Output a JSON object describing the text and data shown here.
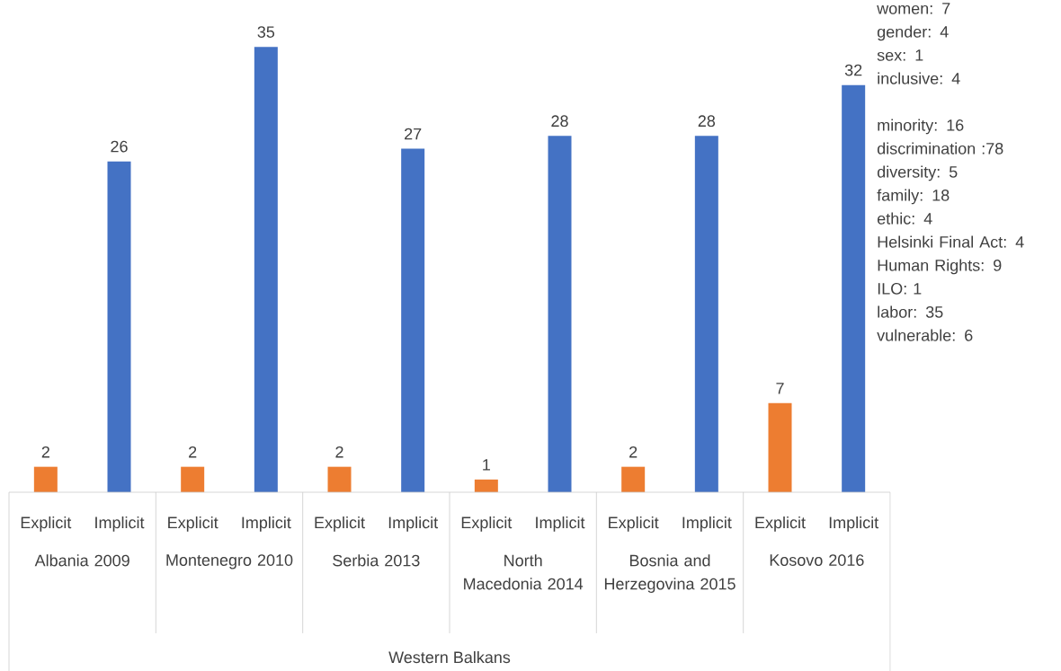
{
  "chart_data": {
    "type": "bar",
    "categories": [
      "Explicit",
      "Implicit",
      "Explicit",
      "Implicit",
      "Explicit",
      "Implicit",
      "Explicit",
      "Implicit",
      "Explicit",
      "Implicit",
      "Explicit",
      "Implicit"
    ],
    "values": [
      2,
      26,
      2,
      35,
      2,
      27,
      1,
      28,
      2,
      28,
      7,
      32
    ],
    "colors": [
      "#ed7d31",
      "#4472c4",
      "#ed7d31",
      "#4472c4",
      "#ed7d31",
      "#4472c4",
      "#ed7d31",
      "#4472c4",
      "#ed7d31",
      "#4472c4",
      "#ed7d31",
      "#4472c4"
    ],
    "data_labels": true,
    "annotations": [
      "Albania 2009",
      "Montenegro 2010",
      "Serbia 2013",
      "North Macedonia 2014",
      "Bosnia and Herzegovina 2015",
      "Kosovo 2016",
      "Western Balkans",
      "women: 7",
      "gender: 4",
      "sex: 1",
      "inclusive: 4",
      "minority: 16",
      "discrimination :78",
      "diversity: 5",
      "family: 18",
      "ethic: 4",
      "Helsinki Final Act: 4",
      "Human Rights: 9",
      "ILO: 1",
      "labor: 35",
      "vulnerable: 6"
    ]
  }
}
